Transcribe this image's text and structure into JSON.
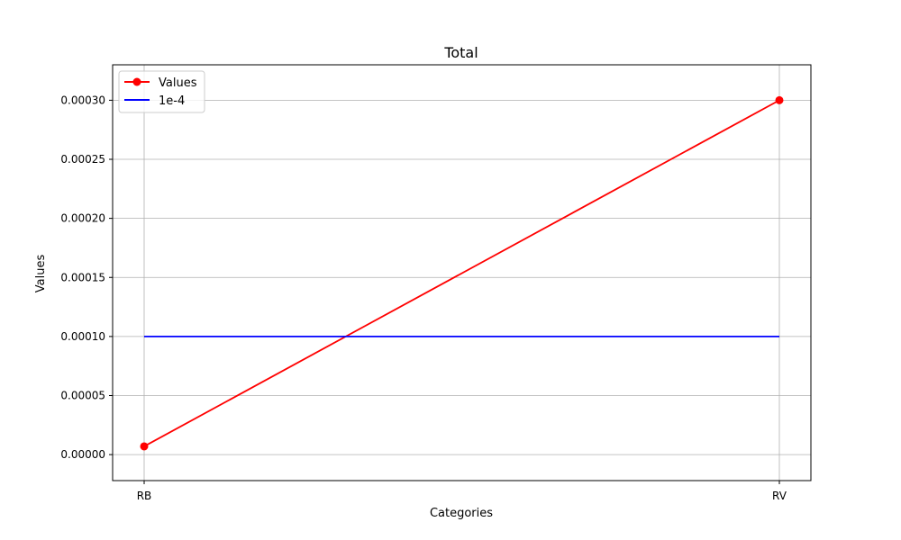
{
  "chart_data": {
    "type": "line",
    "title": "Total",
    "xlabel": "Categories",
    "ylabel": "Values",
    "categories": [
      "RB",
      "RV"
    ],
    "ylim": [
      -2.2e-05,
      0.00033
    ],
    "yticks": [
      0,
      5e-05,
      0.0001,
      0.00015,
      0.0002,
      0.00025,
      0.0003
    ],
    "ytick_labels": [
      "0.00000",
      "0.00005",
      "0.00010",
      "0.00015",
      "0.00020",
      "0.00025",
      "0.00030"
    ],
    "grid": true,
    "legend_position": "top-left",
    "series": [
      {
        "name": "Values",
        "values": [
          7e-06,
          0.0003
        ],
        "color": "#ff0000",
        "marker": "circle"
      },
      {
        "name": "1e-4",
        "values": [
          0.0001,
          0.0001
        ],
        "color": "#0000ff",
        "marker": "none"
      }
    ]
  }
}
